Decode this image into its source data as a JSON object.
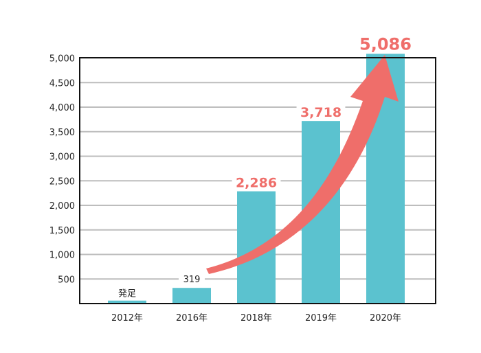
{
  "chart_data": {
    "type": "bar",
    "categories": [
      "2012年",
      "2016年",
      "2018年",
      "2019年",
      "2020年"
    ],
    "values": [
      60,
      319,
      2286,
      3718,
      5086
    ],
    "data_labels": [
      "発足",
      "319",
      "2,286",
      "3,718",
      "5,086"
    ],
    "y_ticks": [
      500,
      1000,
      1500,
      2000,
      2500,
      3000,
      3500,
      4000,
      4500,
      5000
    ],
    "y_tick_labels": [
      "500",
      "1,000",
      "1,500",
      "2,000",
      "2,500",
      "3,000",
      "3,500",
      "4,000",
      "4,500",
      "5,000"
    ],
    "ylim": [
      0,
      5000
    ],
    "grid": true,
    "title": "",
    "xlabel": "",
    "ylabel": "",
    "colors": {
      "bar": "#5bc2cf",
      "accent": "#ef6e6a",
      "grid": "#bdbdbd",
      "frame": "#111111",
      "text": "#222222"
    }
  }
}
